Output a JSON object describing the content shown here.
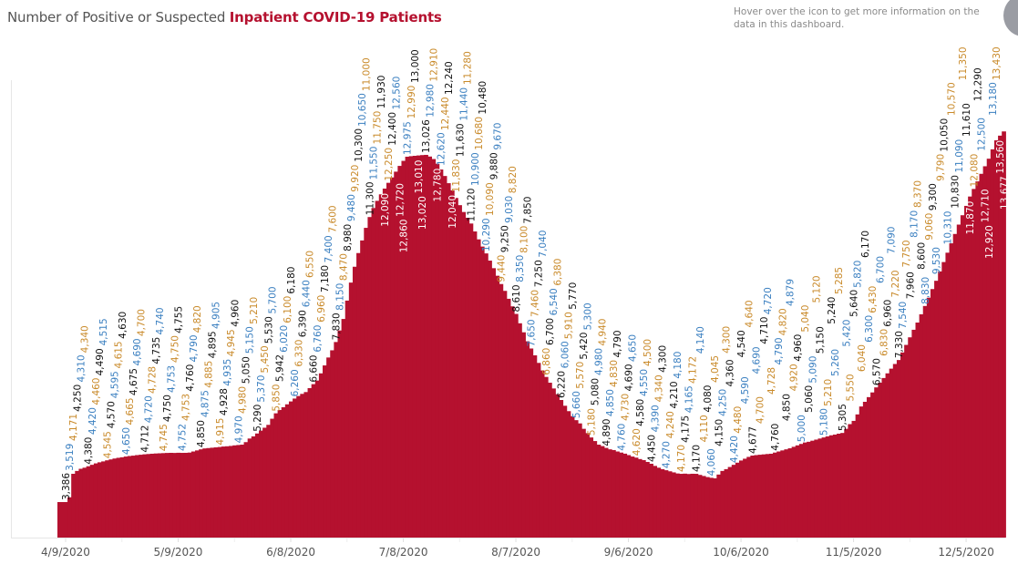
{
  "header": {
    "title_prefix": "Number of Positive or Suspected ",
    "title_highlight": "Inpatient COVID-19 Patients",
    "note": "Hover over the icon to get more information on the data in this dashboard.",
    "info_icon": "info-circle-icon"
  },
  "colors": {
    "area": "#b5112f",
    "title_highlight": "#b5112f",
    "label_colors": [
      "#111111",
      "#3a7fc0",
      "#c98a2a"
    ]
  },
  "chart_data": {
    "type": "area",
    "title": "Number of Positive or Suspected Inpatient COVID-19 Patients",
    "xlabel": "",
    "ylabel": "",
    "x_range": [
      "4/9/2020",
      "12/15/2020"
    ],
    "x_ticks": [
      "4/9/2020",
      "5/9/2020",
      "6/8/2020",
      "7/8/2020",
      "8/7/2020",
      "9/6/2020",
      "10/6/2020",
      "11/5/2020",
      "12/5/2020"
    ],
    "ylim": [
      2400,
      15100
    ],
    "grid": false,
    "data_labels": true,
    "values": [
      3386,
      3519,
      4171,
      4250,
      4310,
      4340,
      4380,
      4420,
      4460,
      4490,
      4515,
      4545,
      4570,
      4595,
      4615,
      4630,
      4650,
      4665,
      4675,
      4690,
      4700,
      4712,
      4720,
      4728,
      4735,
      4740,
      4745,
      4750,
      4753,
      4750,
      4755,
      4752,
      4753,
      4760,
      4790,
      4820,
      4850,
      4875,
      4885,
      4895,
      4905,
      4915,
      4928,
      4935,
      4945,
      4960,
      4970,
      4980,
      5050,
      5150,
      5210,
      5290,
      5370,
      5450,
      5530,
      5700,
      5850,
      5942,
      6020,
      6100,
      6180,
      6260,
      6330,
      6390,
      6440,
      6550,
      6660,
      6760,
      6960,
      7180,
      7400,
      7600,
      7830,
      8150,
      8470,
      8980,
      9480,
      9920,
      10300,
      10650,
      11000,
      11300,
      11550,
      11750,
      11930,
      12090,
      12250,
      12400,
      12560,
      12720,
      12860,
      12975,
      12990,
      13000,
      13010,
      13020,
      13026,
      12980,
      12910,
      12780,
      12620,
      12440,
      12240,
      12040,
      11830,
      11630,
      11440,
      11280,
      11120,
      10900,
      10680,
      10480,
      10290,
      10090,
      9880,
      9670,
      9440,
      9250,
      9030,
      8820,
      8610,
      8350,
      8100,
      7850,
      7650,
      7460,
      7250,
      7040,
      6860,
      6700,
      6540,
      6380,
      6220,
      6060,
      5910,
      5770,
      5660,
      5570,
      5420,
      5300,
      5180,
      5080,
      4980,
      4940,
      4890,
      4850,
      4830,
      4790,
      4760,
      4730,
      4690,
      4650,
      4620,
      4580,
      4550,
      4500,
      4450,
      4390,
      4340,
      4300,
      4270,
      4240,
      4210,
      4180,
      4170,
      4175,
      4165,
      4172,
      4170,
      4140,
      4110,
      4080,
      4060,
      4045,
      4150,
      4250,
      4300,
      4360,
      4420,
      4480,
      4540,
      4590,
      4640,
      4677,
      4690,
      4700,
      4710,
      4720,
      4728,
      4760,
      4790,
      4820,
      4850,
      4879,
      4920,
      4960,
      5000,
      5040,
      5060,
      5090,
      5120,
      5150,
      5180,
      5210,
      5240,
      5260,
      5285,
      5305,
      5420,
      5550,
      5640,
      5820,
      6040,
      6170,
      6300,
      6430,
      6570,
      6700,
      6830,
      6960,
      7090,
      7220,
      7330,
      7540,
      7750,
      7960,
      8170,
      8370,
      8600,
      8830,
      9060,
      9300,
      9530,
      9790,
      10050,
      10310,
      10570,
      10830,
      11090,
      11350,
      11610,
      11870,
      12080,
      12290,
      12500,
      12710,
      12920,
      13180,
      13430,
      13560,
      13677
    ]
  }
}
